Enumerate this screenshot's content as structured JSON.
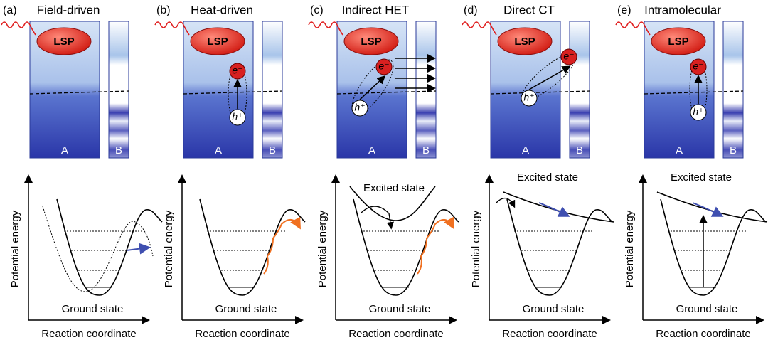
{
  "panels": [
    {
      "label": "(a)",
      "title": "Field-driven",
      "lsp": "LSP",
      "a": "A",
      "b": "B",
      "y_axis": "Potential energy",
      "x_axis": "Reaction coordinate",
      "ground": "Ground state"
    },
    {
      "label": "(b)",
      "title": "Heat-driven",
      "lsp": "LSP",
      "a": "A",
      "b": "B",
      "electron": "e⁻",
      "hole": "h⁺",
      "y_axis": "Potential energy",
      "x_axis": "Reaction coordinate",
      "ground": "Ground state"
    },
    {
      "label": "(c)",
      "title": "Indirect HET",
      "lsp": "LSP",
      "a": "A",
      "b": "B",
      "electron": "e⁻",
      "hole": "h⁺",
      "y_axis": "Potential energy",
      "x_axis": "Reaction coordinate",
      "ground": "Ground state",
      "excited": "Excited state"
    },
    {
      "label": "(d)",
      "title": "Direct CT",
      "lsp": "LSP",
      "a": "A",
      "b": "B",
      "electron": "e⁻",
      "hole": "h⁺",
      "y_axis": "Potential energy",
      "x_axis": "Reaction coordinate",
      "ground": "Ground state",
      "excited": "Excited state"
    },
    {
      "label": "(e)",
      "title": "Intramolecular",
      "lsp": "LSP",
      "a": "A",
      "b": "B",
      "electron": "e⁻",
      "hole": "h⁺",
      "y_axis": "Potential energy",
      "x_axis": "Reaction coordinate",
      "ground": "Ground state",
      "excited": "Excited state"
    }
  ]
}
